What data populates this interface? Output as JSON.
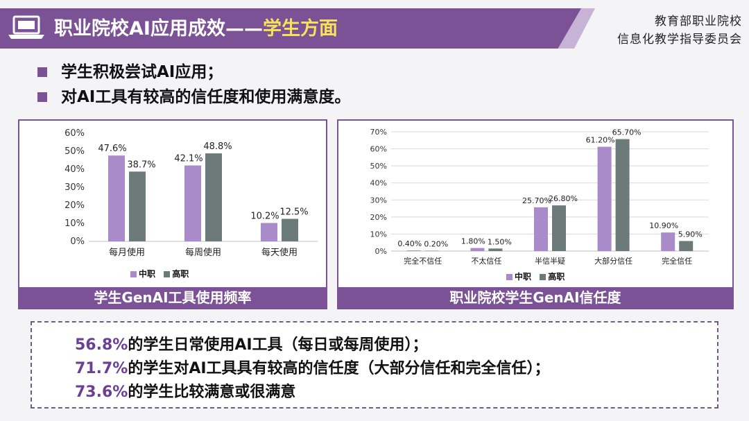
{
  "header": {
    "title_main": "职业院校AI应用成效——",
    "title_accent": "学生方面",
    "org_line1": "教育部职业院校",
    "org_line2": "信息化教学指导委员会",
    "icon": "laptop-icon"
  },
  "bullets": [
    "学生积极尝试AI应用；",
    "对AI工具有较高的信任度和使用满意度。"
  ],
  "colors": {
    "series_a": "#a98bc9",
    "series_b": "#6c7a7a",
    "accent": "#7b5296",
    "highlight": "#6b3f93"
  },
  "chart_data": [
    {
      "type": "bar",
      "caption": "学生GenAI工具使用频率",
      "categories": [
        "每月使用",
        "每周使用",
        "每天使用"
      ],
      "series": [
        {
          "name": "中职",
          "values": [
            47.6,
            42.1,
            10.2
          ],
          "labels": [
            "47.6%",
            "42.1%",
            "10.2%"
          ]
        },
        {
          "name": "高职",
          "values": [
            38.7,
            48.8,
            12.5
          ],
          "labels": [
            "38.7%",
            "48.8%",
            "12.5%"
          ]
        }
      ],
      "ylim": [
        0,
        60
      ],
      "yticks": [
        "0%",
        "10%",
        "20%",
        "30%",
        "40%",
        "50%",
        "60%"
      ],
      "legend": "bottom",
      "grid": false
    },
    {
      "type": "bar",
      "caption": "职业院校学生GenAI信任度",
      "categories": [
        "完全不信任",
        "不太信任",
        "半信半疑",
        "大部分信任",
        "完全信任"
      ],
      "series": [
        {
          "name": "中职",
          "values": [
            0.4,
            1.8,
            25.7,
            61.2,
            10.9
          ],
          "labels": [
            "0.40%",
            "1.80%",
            "25.70%",
            "61.20%",
            "10.90%"
          ]
        },
        {
          "name": "高职",
          "values": [
            0.2,
            1.5,
            26.8,
            65.7,
            5.9
          ],
          "labels": [
            "0.20%",
            "1.50%",
            "26.80%",
            "65.70%",
            "5.90%"
          ]
        }
      ],
      "ylim": [
        0,
        70
      ],
      "yticks": [
        "0%",
        "10%",
        "20%",
        "30%",
        "40%",
        "50%",
        "60%",
        "70%"
      ],
      "legend": "bottom",
      "grid": true
    }
  ],
  "summary": [
    {
      "pct": "56.8%",
      "text": "的学生日常使用AI工具（每日或每周使用）；"
    },
    {
      "pct": "71.7%",
      "text": "的学生对AI工具具有较高的信任度（大部分信任和完全信任）；"
    },
    {
      "pct": "73.6%",
      "text": "的学生比较满意或很满意"
    }
  ]
}
